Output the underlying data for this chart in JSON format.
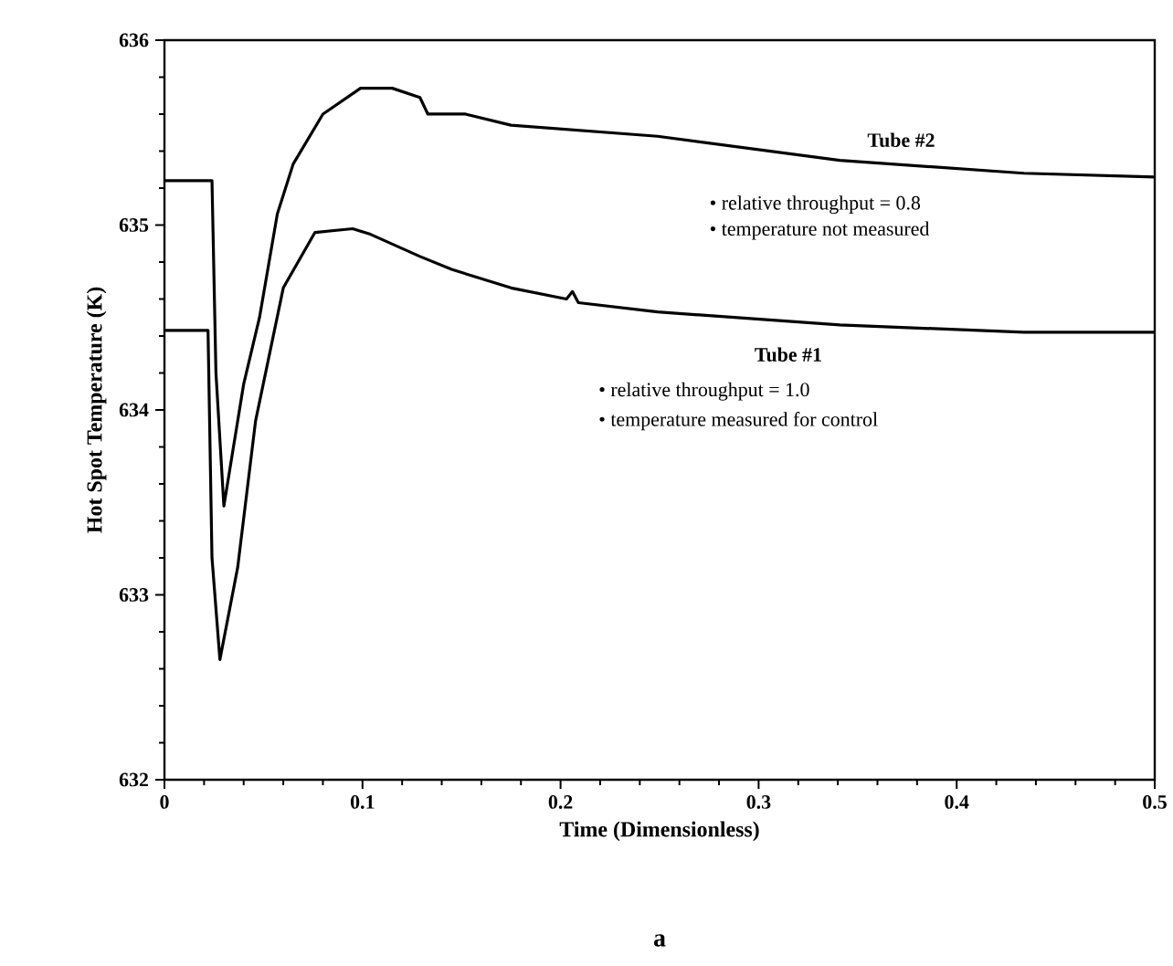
{
  "chart_data": {
    "type": "line",
    "xlabel": "Time (Dimensionless)",
    "ylabel": "Hot Spot Temperature (K)",
    "xlim": [
      0,
      0.5
    ],
    "ylim": [
      632,
      636
    ],
    "xticks": [
      0,
      0.1,
      0.2,
      0.3,
      0.4,
      0.5
    ],
    "yticks": [
      632,
      633,
      634,
      635,
      636
    ],
    "grid": false,
    "marker": "none",
    "line_style": "solid",
    "series": [
      {
        "color": "#000000",
        "x": [
          0,
          0.024,
          0.026,
          0.03,
          0.04,
          0.048,
          0.057,
          0.065,
          0.08,
          0.099,
          0.115,
          0.129,
          0.133,
          0.152,
          0.175,
          0.249,
          0.341,
          0.434,
          0.5
        ],
        "values": [
          635.24,
          635.24,
          634.2,
          633.48,
          634.14,
          634.5,
          635.06,
          635.33,
          635.6,
          635.74,
          635.74,
          635.69,
          635.6,
          635.6,
          635.54,
          635.48,
          635.35,
          635.28,
          635.26
        ]
      },
      {
        "color": "#000000",
        "x": [
          0,
          0.022,
          0.024,
          0.028,
          0.037,
          0.046,
          0.06,
          0.076,
          0.095,
          0.104,
          0.129,
          0.145,
          0.175,
          0.203,
          0.206,
          0.209,
          0.249,
          0.341,
          0.434,
          0.5
        ],
        "values": [
          634.43,
          634.43,
          633.2,
          632.65,
          633.15,
          633.94,
          634.66,
          634.96,
          634.98,
          634.95,
          634.83,
          634.76,
          634.66,
          634.6,
          634.64,
          634.58,
          634.53,
          634.46,
          634.42,
          634.42
        ]
      }
    ],
    "annotations": [
      "Tube #2",
      "• relative throughput = 0.8",
      "• temperature not measured",
      "Tube #1",
      "• relative throughput = 1.0",
      "• temperature  measured for control",
      "a"
    ]
  }
}
